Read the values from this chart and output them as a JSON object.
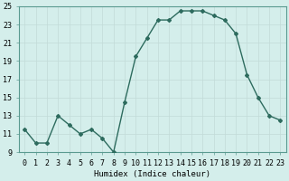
{
  "x": [
    0,
    1,
    2,
    3,
    4,
    5,
    6,
    7,
    8,
    9,
    10,
    11,
    12,
    13,
    14,
    15,
    16,
    17,
    18,
    19,
    20,
    21,
    22,
    23
  ],
  "y": [
    11.5,
    10.0,
    10.0,
    13.0,
    12.0,
    11.0,
    11.5,
    10.5,
    9.0,
    14.5,
    19.5,
    21.5,
    23.5,
    23.5,
    24.5,
    24.5,
    24.5,
    24.0,
    23.5,
    22.0,
    17.5,
    15.0,
    13.0,
    12.5
  ],
  "line_color": "#2d6b5e",
  "marker": "D",
  "marker_size": 2.0,
  "bg_color": "#d4eeeb",
  "grid_color": "#c2dbd8",
  "xlabel": "Humidex (Indice chaleur)",
  "ylim": [
    9,
    25
  ],
  "xlim": [
    -0.5,
    23.5
  ],
  "yticks": [
    9,
    11,
    13,
    15,
    17,
    19,
    21,
    23,
    25
  ],
  "xtick_labels": [
    "0",
    "1",
    "2",
    "3",
    "4",
    "5",
    "6",
    "7",
    "8",
    "9",
    "10",
    "11",
    "12",
    "13",
    "14",
    "15",
    "16",
    "17",
    "18",
    "19",
    "20",
    "21",
    "22",
    "23"
  ],
  "xlabel_fontsize": 6.5,
  "tick_fontsize": 6.0,
  "linewidth": 1.0
}
